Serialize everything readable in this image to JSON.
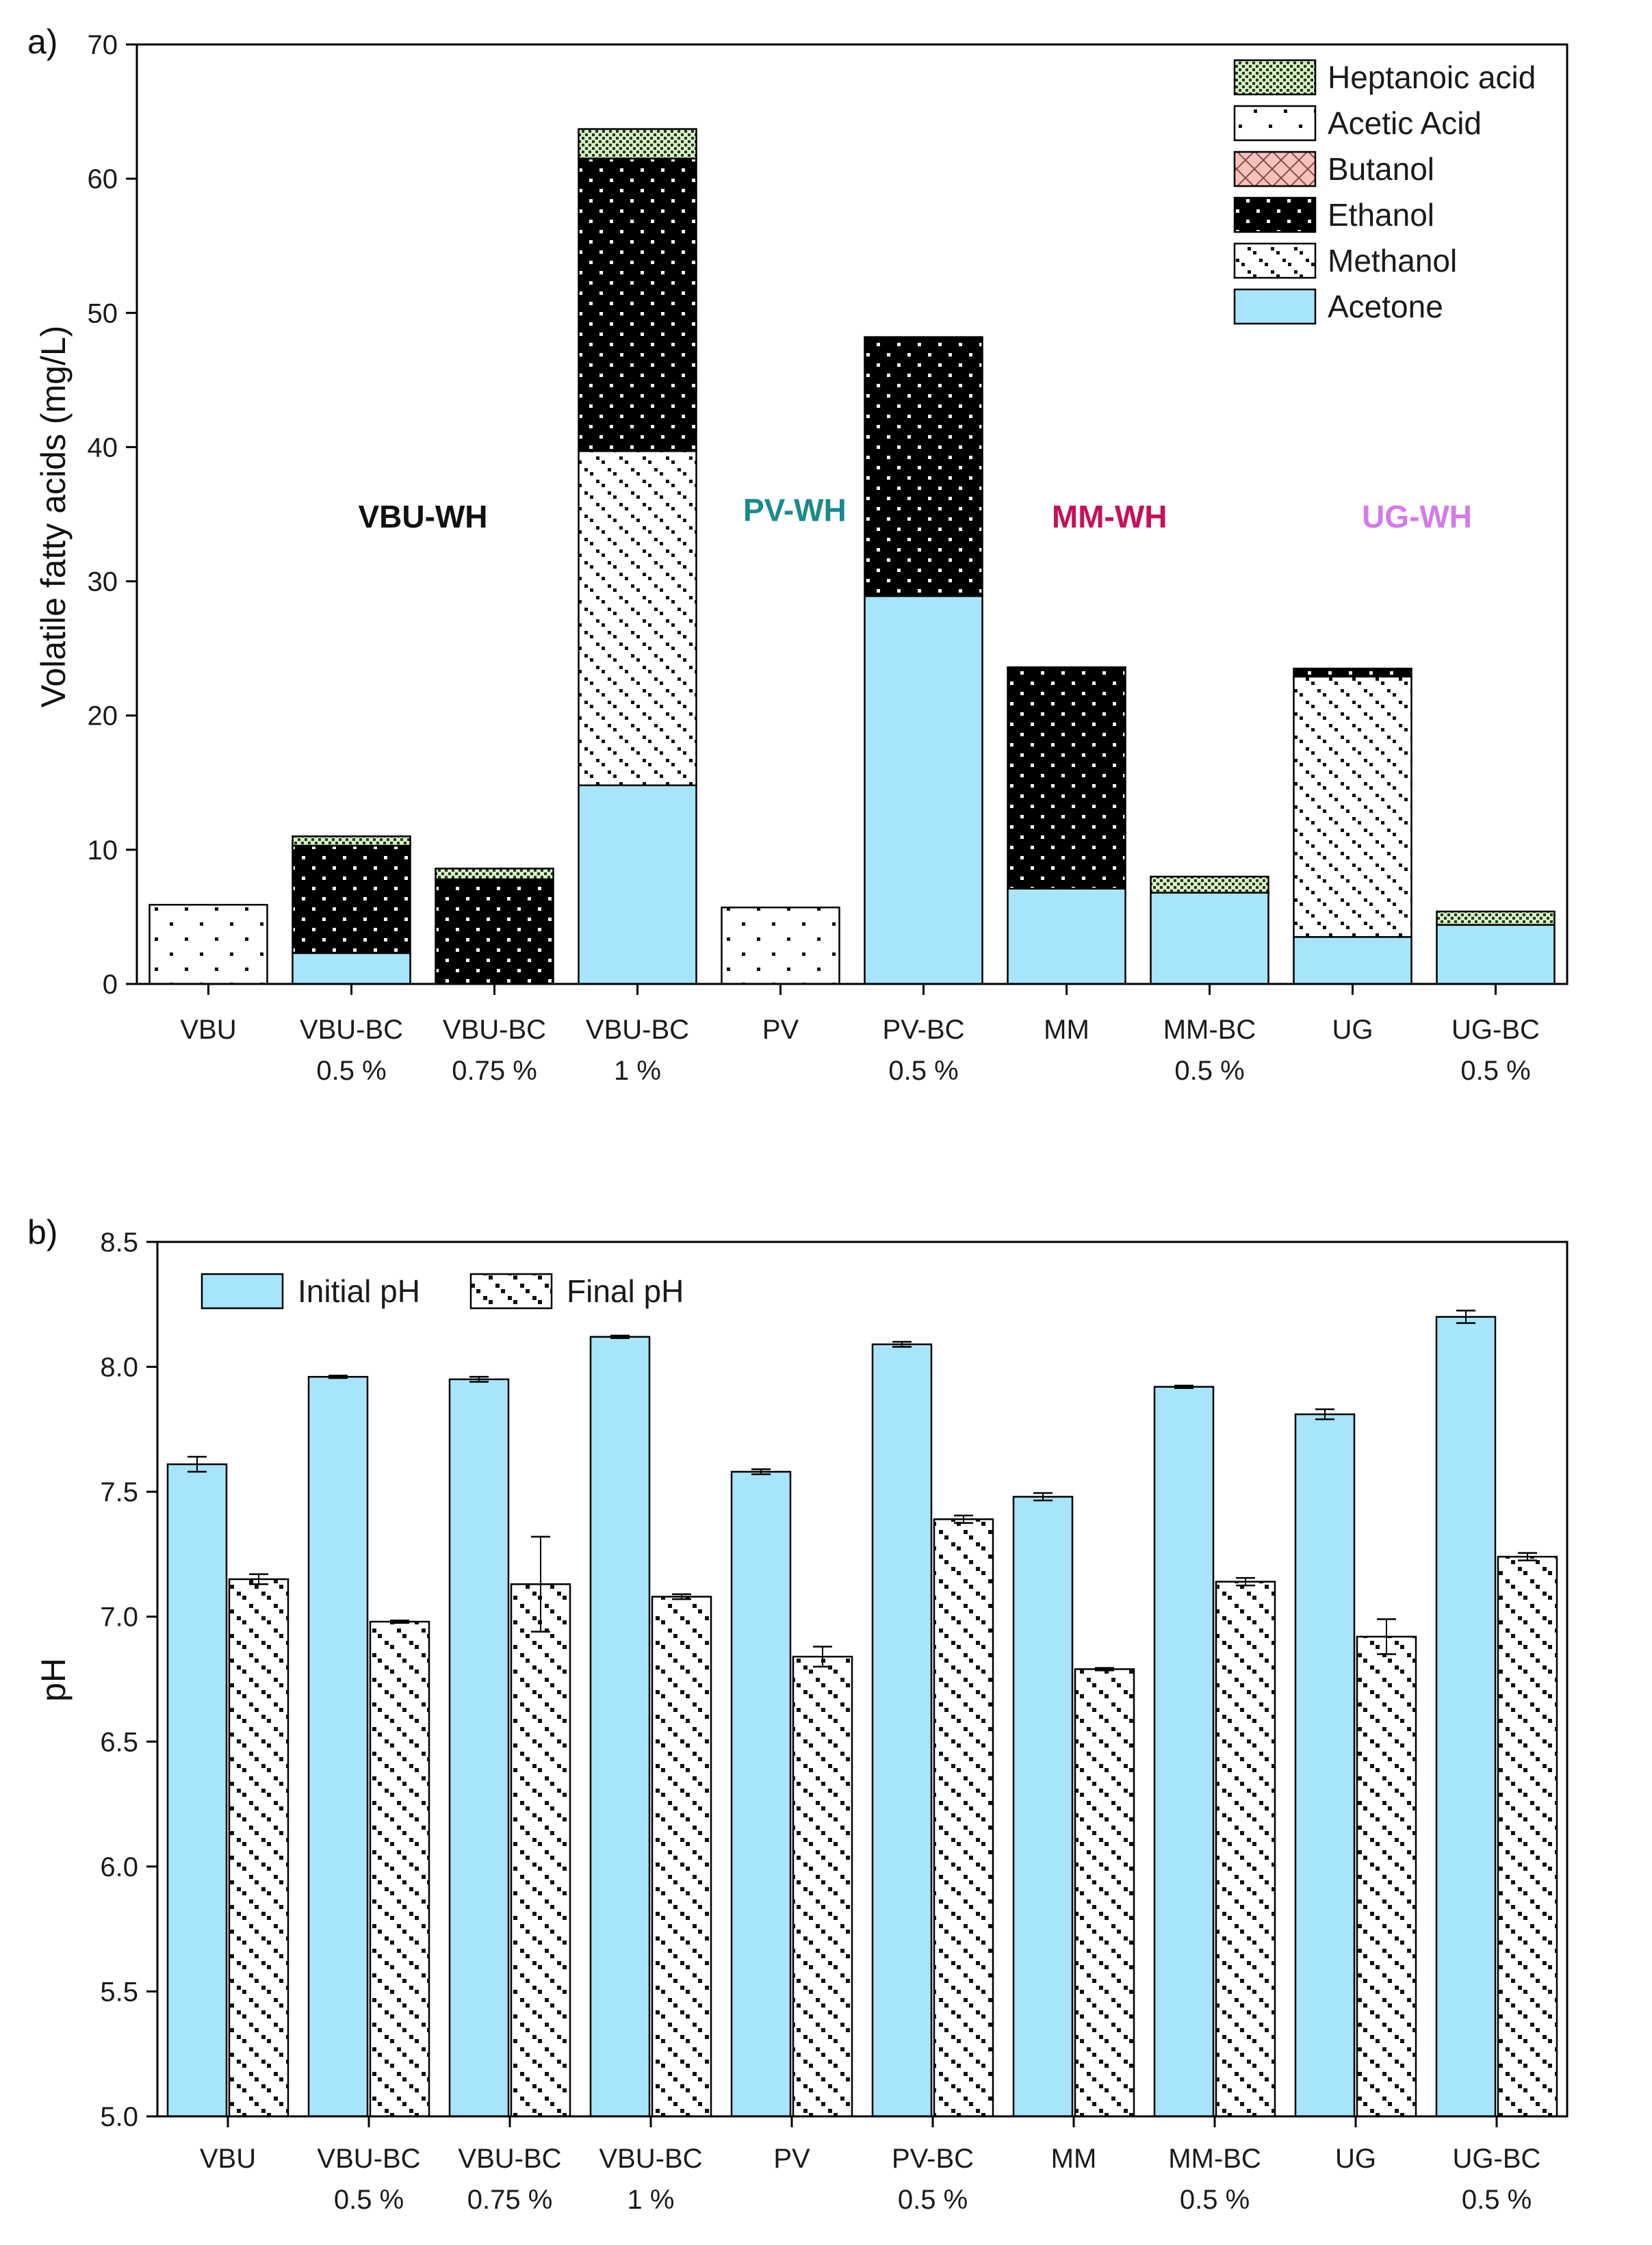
{
  "colors": {
    "acetone": "#a6e5fb",
    "butanol": "#f7c2bb",
    "heptanoic": "#d8edc4",
    "vbu_group": "#111111",
    "pv_group": "#1a8a8a",
    "mm_group": "#c4115a",
    "ug_group": "#d27ce8"
  },
  "chart_data": [
    {
      "type": "bar",
      "stacked": true,
      "panel_label": "a)",
      "ylabel": "Volatile fatty acids (mg/L)",
      "ylim": [
        0,
        70
      ],
      "yticks": [
        "0",
        "10",
        "20",
        "30",
        "40",
        "50",
        "60",
        "70"
      ],
      "categories": [
        [
          "VBU",
          ""
        ],
        [
          "VBU-BC",
          "0.5 %"
        ],
        [
          "VBU-BC",
          "0.75 %"
        ],
        [
          "VBU-BC",
          "1 %"
        ],
        [
          "PV",
          ""
        ],
        [
          "PV-BC",
          "0.5 %"
        ],
        [
          "MM",
          ""
        ],
        [
          "MM-BC",
          "0.5 %"
        ],
        [
          "UG",
          ""
        ],
        [
          "UG-BC",
          "0.5 %"
        ]
      ],
      "series": [
        {
          "name": "Acetone",
          "pattern": "acetone",
          "values": [
            0,
            2.3,
            0,
            14.8,
            0,
            28.9,
            7.1,
            6.8,
            3.5,
            4.4
          ]
        },
        {
          "name": "Methanol",
          "pattern": "methanol",
          "values": [
            0,
            0,
            0,
            24.9,
            0,
            0,
            0,
            0,
            19.4,
            0
          ]
        },
        {
          "name": "Ethanol",
          "pattern": "ethanol",
          "values": [
            0,
            8.0,
            7.8,
            21.8,
            0,
            19.3,
            16.5,
            0,
            0.6,
            0
          ]
        },
        {
          "name": "Butanol",
          "pattern": "butanol",
          "values": [
            0,
            0,
            0,
            0,
            0,
            0,
            0,
            0,
            0,
            0
          ]
        },
        {
          "name": "Acetic Acid",
          "pattern": "acetic",
          "values": [
            5.9,
            0,
            0,
            0,
            5.7,
            0,
            0,
            0,
            0,
            0
          ]
        },
        {
          "name": "Heptanoic acid",
          "pattern": "heptanoic",
          "values": [
            0,
            0.7,
            0.8,
            2.2,
            0,
            0,
            0,
            1.2,
            0,
            1.0
          ]
        }
      ],
      "legend_order": [
        "Heptanoic acid",
        "Acetic Acid",
        "Butanol",
        "Ethanol",
        "Methanol",
        "Acetone"
      ],
      "legend_position": "top-right",
      "group_labels": [
        {
          "text": "VBU-WH",
          "color_key": "vbu_group",
          "x_center": 1.5,
          "y": 34
        },
        {
          "text": "PV-WH",
          "color_key": "pv_group",
          "x_center": 4.1,
          "y": 34.5
        },
        {
          "text": "MM-WH",
          "color_key": "mm_group",
          "x_center": 6.3,
          "y": 34
        },
        {
          "text": "UG-WH",
          "color_key": "ug_group",
          "x_center": 8.45,
          "y": 34
        }
      ]
    },
    {
      "type": "bar",
      "panel_label": "b)",
      "ylabel": "pH",
      "ylim": [
        5.0,
        8.5
      ],
      "yticks": [
        "5.0",
        "5.5",
        "6.0",
        "6.5",
        "7.0",
        "7.5",
        "8.0",
        "8.5"
      ],
      "categories": [
        [
          "VBU",
          ""
        ],
        [
          "VBU-BC",
          "0.5 %"
        ],
        [
          "VBU-BC",
          "0.75 %"
        ],
        [
          "VBU-BC",
          "1 %"
        ],
        [
          "PV",
          ""
        ],
        [
          "PV-BC",
          "0.5 %"
        ],
        [
          "MM",
          ""
        ],
        [
          "MM-BC",
          "0.5 %"
        ],
        [
          "UG",
          ""
        ],
        [
          "UG-BC",
          "0.5 %"
        ]
      ],
      "series": [
        {
          "name": "Initial pH",
          "pattern": "acetone",
          "values": [
            7.61,
            7.96,
            7.95,
            8.12,
            7.58,
            8.09,
            7.48,
            7.92,
            7.81,
            8.2
          ],
          "errors": [
            0.03,
            0.005,
            0.01,
            0.005,
            0.01,
            0.01,
            0.015,
            0.005,
            0.02,
            0.025
          ]
        },
        {
          "name": "Final pH",
          "pattern": "final",
          "values": [
            7.15,
            6.98,
            7.13,
            7.08,
            6.84,
            7.39,
            6.79,
            7.14,
            6.92,
            7.24
          ],
          "errors": [
            0.02,
            0.005,
            0.19,
            0.01,
            0.04,
            0.015,
            0.005,
            0.015,
            0.07,
            0.015
          ]
        }
      ],
      "legend_position": "top-left"
    }
  ]
}
